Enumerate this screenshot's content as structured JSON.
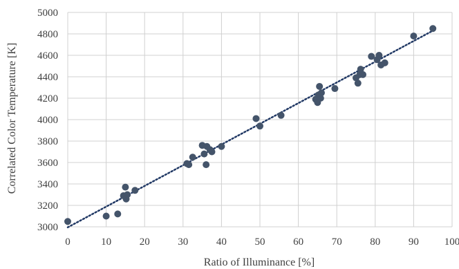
{
  "chart_data": {
    "type": "scatter",
    "xlabel": "Ratio of Illuminance [%]",
    "ylabel": "Correlated Color Temperature [K]",
    "xlim": [
      0,
      100
    ],
    "ylim": [
      3000,
      5000
    ],
    "xticks": [
      "0",
      "10",
      "20",
      "30",
      "40",
      "50",
      "60",
      "70",
      "80",
      "90",
      "100"
    ],
    "yticks": [
      "3000",
      "3200",
      "3400",
      "3600",
      "3800",
      "4000",
      "4200",
      "4400",
      "4600",
      "4800",
      "5000"
    ],
    "grid": true,
    "marker_color": "#44546A",
    "trendline": {
      "style": "dotted",
      "color": "#203864",
      "x": [
        0,
        95
      ],
      "y": [
        2995,
        4830
      ]
    },
    "series": [
      {
        "points": [
          [
            0,
            3050
          ],
          [
            10,
            3100
          ],
          [
            13,
            3120
          ],
          [
            14.5,
            3290
          ],
          [
            15,
            3370
          ],
          [
            15.2,
            3260
          ],
          [
            15.5,
            3300
          ],
          [
            17.5,
            3340
          ],
          [
            31,
            3590
          ],
          [
            31.5,
            3580
          ],
          [
            32.5,
            3650
          ],
          [
            35,
            3760
          ],
          [
            35.5,
            3680
          ],
          [
            36,
            3580
          ],
          [
            36.2,
            3750
          ],
          [
            37,
            3720
          ],
          [
            37.5,
            3700
          ],
          [
            40,
            3750
          ],
          [
            49,
            4010
          ],
          [
            50,
            3940
          ],
          [
            55.5,
            4040
          ],
          [
            64.5,
            4190
          ],
          [
            65,
            4160
          ],
          [
            65.2,
            4230
          ],
          [
            65.5,
            4310
          ],
          [
            66,
            4250
          ],
          [
            65.8,
            4200
          ],
          [
            69.5,
            4290
          ],
          [
            75,
            4390
          ],
          [
            75.5,
            4340
          ],
          [
            76,
            4420
          ],
          [
            76.2,
            4470
          ],
          [
            76.8,
            4420
          ],
          [
            79,
            4590
          ],
          [
            80.5,
            4560
          ],
          [
            81,
            4600
          ],
          [
            81.5,
            4510
          ],
          [
            82.5,
            4530
          ],
          [
            90,
            4780
          ],
          [
            95,
            4850
          ]
        ]
      }
    ]
  }
}
